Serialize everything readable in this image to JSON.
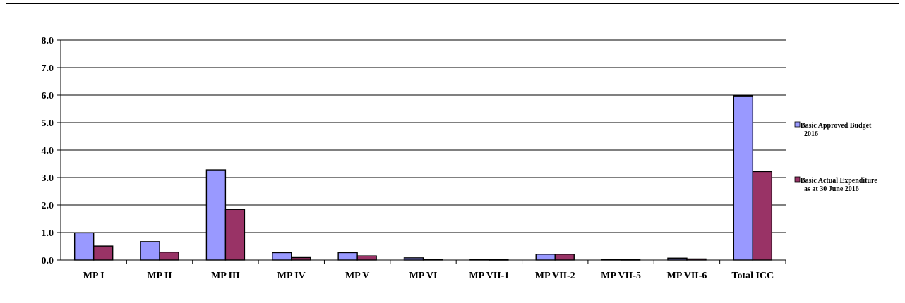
{
  "chart_data": {
    "type": "bar",
    "categories": [
      "MP I",
      "MP II",
      "MP III",
      "MP IV",
      "MP V",
      "MP VI",
      "MP VII-1",
      "MP VII-2",
      "MP VII-5",
      "MP VII-6",
      "Total ICC"
    ],
    "series": [
      {
        "name": "Basic Approved Budget 2016",
        "legend_lines": [
          "Basic Approved Budget",
          "2016"
        ],
        "color": "#9999ff",
        "values": [
          0.99,
          0.67,
          3.28,
          0.27,
          0.27,
          0.08,
          0.03,
          0.21,
          0.03,
          0.07,
          5.97
        ]
      },
      {
        "name": "Basic Actual Expenditure as at 30 June 2016",
        "legend_lines": [
          "Basic Actual Expenditure",
          "as at 30 June 2016"
        ],
        "color": "#993366",
        "values": [
          0.51,
          0.29,
          1.84,
          0.09,
          0.15,
          0.03,
          0.01,
          0.21,
          0.01,
          0.04,
          3.22
        ]
      }
    ],
    "y_ticks": [
      "0.0",
      "1.0",
      "2.0",
      "3.0",
      "4.0",
      "5.0",
      "6.0",
      "7.0",
      "8.0"
    ],
    "ylim": [
      0,
      8
    ],
    "title": "",
    "xlabel": "",
    "ylabel": "",
    "grid": true,
    "legend_position": "right"
  }
}
